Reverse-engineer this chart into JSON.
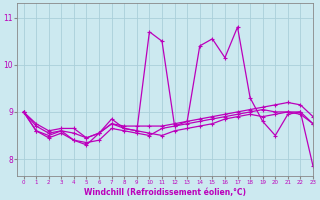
{
  "xlabel": "Windchill (Refroidissement éolien,°C)",
  "xlim": [
    -0.5,
    23
  ],
  "ylim": [
    7.65,
    11.3
  ],
  "yticks": [
    8,
    9,
    10,
    11
  ],
  "xticks": [
    0,
    1,
    2,
    3,
    4,
    5,
    6,
    7,
    8,
    9,
    10,
    11,
    12,
    13,
    14,
    15,
    16,
    17,
    18,
    19,
    20,
    21,
    22,
    23
  ],
  "background_color": "#cce9f0",
  "grid_color": "#aacfda",
  "line_color": "#bb00bb",
  "line1": [
    9.0,
    8.75,
    8.6,
    8.65,
    8.65,
    8.45,
    8.55,
    8.75,
    8.7,
    8.7,
    8.7,
    8.7,
    8.75,
    8.8,
    8.85,
    8.9,
    8.95,
    9.0,
    9.05,
    9.1,
    9.15,
    9.2,
    9.15,
    8.9
  ],
  "line2": [
    9.0,
    8.7,
    8.55,
    8.6,
    8.55,
    8.45,
    8.55,
    8.75,
    8.65,
    8.6,
    8.55,
    8.5,
    8.6,
    8.65,
    8.7,
    8.75,
    8.85,
    8.9,
    8.95,
    8.9,
    8.95,
    9.0,
    9.0,
    8.75
  ],
  "line3": [
    9.0,
    8.6,
    8.5,
    8.6,
    8.4,
    8.35,
    8.4,
    8.65,
    8.6,
    8.55,
    8.5,
    8.65,
    8.7,
    8.75,
    8.8,
    8.85,
    8.9,
    8.95,
    9.0,
    9.05,
    9.0,
    9.0,
    8.95,
    8.75
  ],
  "line4": [
    9.0,
    8.6,
    8.45,
    8.55,
    8.4,
    8.3,
    8.55,
    8.85,
    8.65,
    8.6,
    10.7,
    10.5,
    8.7,
    8.8,
    10.4,
    10.55,
    10.15,
    10.8,
    9.3,
    8.8,
    8.5,
    8.95,
    9.0,
    7.85
  ]
}
